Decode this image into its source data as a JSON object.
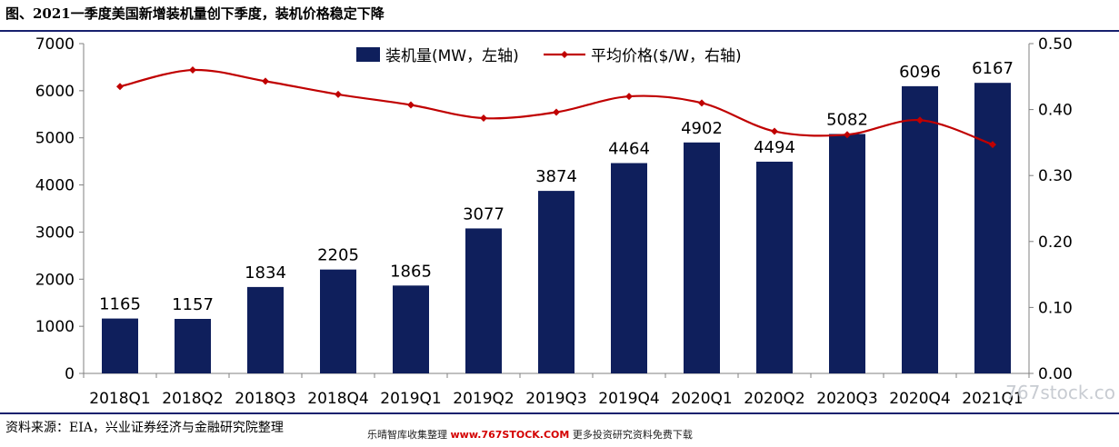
{
  "figure": {
    "title": "图、2021一季度美国新增装机量创下季度，装机价格稳定下降",
    "source": "资料来源：EIA，兴业证券经济与金融研究院整理",
    "watermark_prefix": "乐晴智库收集整理",
    "watermark_site": "www.767STOCK.COM",
    "watermark_suffix": "更多投资研究资料免费下载",
    "corner_watermark": "767stock.co"
  },
  "chart_data": {
    "type": "bar",
    "categories": [
      "2018Q1",
      "2018Q2",
      "2018Q3",
      "2018Q4",
      "2019Q1",
      "2019Q2",
      "2019Q3",
      "2019Q4",
      "2020Q1",
      "2020Q2",
      "2020Q3",
      "2020Q4",
      "2021Q1"
    ],
    "series": [
      {
        "name": "装机量(MW，左轴)",
        "type": "bar",
        "axis": "left",
        "color": "#0f1f5c",
        "values": [
          1165,
          1157,
          1834,
          2205,
          1865,
          3077,
          3874,
          4464,
          4902,
          4494,
          5082,
          6096,
          6167
        ]
      },
      {
        "name": "平均价格($/W，右轴)",
        "type": "line",
        "axis": "right",
        "color": "#c00000",
        "values": [
          0.435,
          0.46,
          0.443,
          0.423,
          0.407,
          0.387,
          0.396,
          0.42,
          0.41,
          0.367,
          0.362,
          0.384,
          0.347
        ]
      }
    ],
    "y_left": {
      "ylim": [
        0,
        7000
      ],
      "ticks": [
        "0",
        "1000",
        "2000",
        "3000",
        "4000",
        "5000",
        "6000",
        "7000"
      ]
    },
    "y_right": {
      "ylim": [
        0,
        0.5
      ],
      "ticks": [
        "0.00",
        "0.10",
        "0.20",
        "0.30",
        "0.40",
        "0.50"
      ]
    },
    "legend_position": "top-center",
    "grid": false
  }
}
